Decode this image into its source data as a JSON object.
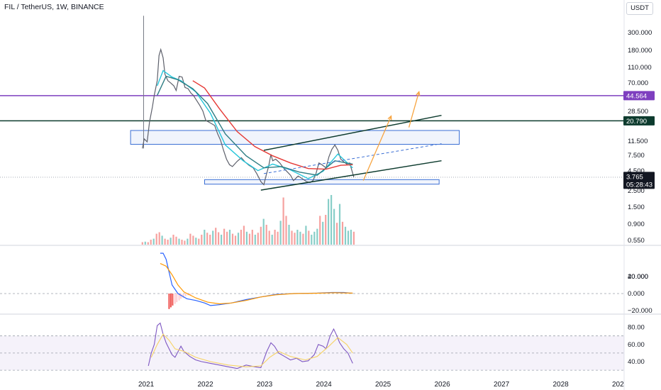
{
  "header": {
    "title": "FIL / TetherUS, 1W, BINANCE",
    "currency": "USDT"
  },
  "colors": {
    "ema_fast": "#26c6da",
    "ema_mid": "#2e7d83",
    "ema_slow": "#e53935",
    "purple": "#7e3fbf",
    "dark_green": "#0d3b2e",
    "box": "#3b6fd4",
    "projection": "#f7a440",
    "macd": "#2962ff",
    "signal": "#ff9800",
    "rsi": "#7e57c2",
    "rsi_ma": "#f6d365"
  },
  "chart_data": [
    {
      "type": "line",
      "title": "FIL / TetherUS, 1W, BINANCE",
      "scale": "log",
      "x_ticks": [
        "2021",
        "2022",
        "2023",
        "2024",
        "2025",
        "2026",
        "2027",
        "2028",
        "202"
      ],
      "y_ticks": [
        "300.000",
        "180.000",
        "110.000",
        "70.000",
        "28.500",
        "11.500",
        "7.500",
        "4.500",
        "2.500",
        "1.500",
        "0.900",
        "0.550"
      ],
      "price_labels": [
        {
          "text": "44.564",
          "kind": "purple"
        },
        {
          "text": "20.790",
          "kind": "dark"
        },
        {
          "text": "3.765",
          "kind": "last"
        },
        {
          "text": "05:28:43",
          "kind": "countdown"
        }
      ],
      "price_path": [
        [
          2020.95,
          9
        ],
        [
          2020.98,
          12
        ],
        [
          2021.03,
          11
        ],
        [
          2021.07,
          20
        ],
        [
          2021.12,
          32
        ],
        [
          2021.15,
          45
        ],
        [
          2021.2,
          70
        ],
        [
          2021.23,
          150
        ],
        [
          2021.26,
          180
        ],
        [
          2021.3,
          140
        ],
        [
          2021.33,
          85
        ],
        [
          2021.38,
          70
        ],
        [
          2021.43,
          65
        ],
        [
          2021.48,
          60
        ],
        [
          2021.52,
          52
        ],
        [
          2021.57,
          80
        ],
        [
          2021.62,
          78
        ],
        [
          2021.67,
          57
        ],
        [
          2021.72,
          55
        ],
        [
          2021.77,
          48
        ],
        [
          2021.81,
          45
        ],
        [
          2021.87,
          38
        ],
        [
          2021.92,
          33
        ],
        [
          2021.97,
          28
        ],
        [
          2022.02,
          21
        ],
        [
          2022.07,
          20
        ],
        [
          2022.12,
          19
        ],
        [
          2022.17,
          18
        ],
        [
          2022.22,
          14
        ],
        [
          2022.27,
          11.5
        ],
        [
          2022.32,
          8.5
        ],
        [
          2022.37,
          6.5
        ],
        [
          2022.42,
          5.5
        ],
        [
          2022.47,
          5.2
        ],
        [
          2022.55,
          6.1
        ],
        [
          2022.62,
          6.8
        ],
        [
          2022.68,
          6.0
        ],
        [
          2022.75,
          5.4
        ],
        [
          2022.82,
          5.0
        ],
        [
          2022.88,
          4.2
        ],
        [
          2022.95,
          3.3
        ],
        [
          2023.0,
          3.0
        ],
        [
          2023.04,
          4.0
        ],
        [
          2023.08,
          5.2
        ],
        [
          2023.12,
          7.5
        ],
        [
          2023.15,
          6.2
        ],
        [
          2023.2,
          6.5
        ],
        [
          2023.27,
          5.8
        ],
        [
          2023.33,
          5.0
        ],
        [
          2023.4,
          4.4
        ],
        [
          2023.45,
          4.0
        ],
        [
          2023.5,
          3.4
        ],
        [
          2023.58,
          3.9
        ],
        [
          2023.65,
          3.6
        ],
        [
          2023.72,
          3.3
        ],
        [
          2023.78,
          3.2
        ],
        [
          2023.83,
          3.4
        ],
        [
          2023.88,
          4.2
        ],
        [
          2023.93,
          5.8
        ],
        [
          2023.98,
          5.5
        ],
        [
          2024.05,
          5.0
        ],
        [
          2024.1,
          7.0
        ],
        [
          2024.15,
          8.8
        ],
        [
          2024.2,
          10.0
        ],
        [
          2024.25,
          8.5
        ],
        [
          2024.3,
          6.5
        ],
        [
          2024.35,
          6.0
        ],
        [
          2024.4,
          5.6
        ],
        [
          2024.45,
          5.8
        ],
        [
          2024.48,
          4.8
        ],
        [
          2024.52,
          3.765
        ]
      ],
      "series": [
        {
          "name": "",
          "color_key": "ema_fast",
          "values": [
            [
              2021.2,
              60
            ],
            [
              2021.3,
              95
            ],
            [
              2021.45,
              78
            ],
            [
              2021.6,
              70
            ],
            [
              2021.85,
              50
            ],
            [
              2022.1,
              26
            ],
            [
              2022.35,
              10
            ],
            [
              2022.65,
              6.2
            ],
            [
              2022.9,
              4.6
            ],
            [
              2023.15,
              5.6
            ],
            [
              2023.45,
              4.7
            ],
            [
              2023.75,
              3.6
            ],
            [
              2024.0,
              4.5
            ],
            [
              2024.25,
              7.6
            ],
            [
              2024.5,
              5.0
            ]
          ]
        },
        {
          "name": "",
          "color_key": "ema_mid",
          "values": [
            [
              2021.2,
              45
            ],
            [
              2021.35,
              80
            ],
            [
              2021.55,
              72
            ],
            [
              2021.8,
              55
            ],
            [
              2022.05,
              35
            ],
            [
              2022.35,
              14
            ],
            [
              2022.7,
              7.2
            ],
            [
              2023.0,
              5.0
            ],
            [
              2023.3,
              5.2
            ],
            [
              2023.6,
              4.4
            ],
            [
              2023.9,
              4.0
            ],
            [
              2024.2,
              6.2
            ],
            [
              2024.5,
              5.6
            ]
          ]
        },
        {
          "name": "",
          "color_key": "ema_slow",
          "values": [
            [
              2021.8,
              70
            ],
            [
              2022.0,
              56
            ],
            [
              2022.25,
              30
            ],
            [
              2022.55,
              15
            ],
            [
              2022.85,
              9.5
            ],
            [
              2023.15,
              7.2
            ],
            [
              2023.45,
              5.8
            ],
            [
              2023.75,
              4.9
            ],
            [
              2024.05,
              4.8
            ],
            [
              2024.3,
              5.4
            ],
            [
              2024.5,
              5.5
            ]
          ]
        }
      ],
      "volume": [
        0.05,
        0.06,
        0.05,
        0.1,
        0.12,
        0.22,
        0.25,
        0.18,
        0.12,
        0.1,
        0.14,
        0.2,
        0.16,
        0.12,
        0.1,
        0.08,
        0.12,
        0.22,
        0.18,
        0.14,
        0.12,
        0.2,
        0.3,
        0.24,
        0.2,
        0.28,
        0.34,
        0.25,
        0.2,
        0.32,
        0.26,
        0.3,
        0.22,
        0.18,
        0.24,
        0.3,
        0.38,
        0.26,
        0.22,
        0.3,
        0.2,
        0.24,
        0.36,
        0.52,
        0.4,
        0.28,
        0.2,
        0.3,
        0.26,
        0.48,
        0.95,
        0.58,
        0.4,
        0.28,
        0.24,
        0.3,
        0.26,
        0.22,
        0.38,
        0.28,
        0.2,
        0.26,
        0.32,
        0.58,
        0.46,
        0.6,
        0.92,
        1.0,
        0.72,
        0.44,
        0.82,
        0.46,
        0.36,
        0.28,
        0.3,
        0.26
      ]
    },
    {
      "type": "line",
      "title": "",
      "y_ticks": [
        "40.000",
        "20.000",
        "0.000",
        "−20.000"
      ],
      "ylim": [
        -24,
        48
      ],
      "series": [
        {
          "name": "",
          "color_key": "macd",
          "values": [
            [
              2021.25,
              47
            ],
            [
              2021.3,
              47
            ],
            [
              2021.35,
              40
            ],
            [
              2021.4,
              25
            ],
            [
              2021.45,
              10
            ],
            [
              2021.55,
              0
            ],
            [
              2021.7,
              -6
            ],
            [
              2021.85,
              -8
            ],
            [
              2022.0,
              -11
            ],
            [
              2022.1,
              -14
            ],
            [
              2022.25,
              -13
            ],
            [
              2022.45,
              -11
            ],
            [
              2022.7,
              -7
            ],
            [
              2022.95,
              -4
            ],
            [
              2023.2,
              -1
            ],
            [
              2023.5,
              0
            ],
            [
              2023.9,
              0.5
            ],
            [
              2024.15,
              1.2
            ],
            [
              2024.35,
              1.2
            ],
            [
              2024.5,
              0.3
            ]
          ]
        },
        {
          "name": "",
          "color_key": "signal",
          "values": [
            [
              2021.25,
              35
            ],
            [
              2021.35,
              32
            ],
            [
              2021.45,
              22
            ],
            [
              2021.55,
              10
            ],
            [
              2021.65,
              2
            ],
            [
              2021.85,
              -5
            ],
            [
              2022.05,
              -10
            ],
            [
              2022.25,
              -12
            ],
            [
              2022.45,
              -11
            ],
            [
              2022.7,
              -8
            ],
            [
              2022.95,
              -4
            ],
            [
              2023.2,
              -1.5
            ],
            [
              2023.5,
              0
            ],
            [
              2023.9,
              0.4
            ],
            [
              2024.2,
              1
            ],
            [
              2024.5,
              0.5
            ]
          ]
        }
      ],
      "histogram": [
        [
          2021.4,
          -18
        ],
        [
          2021.43,
          -16
        ],
        [
          2021.46,
          -14
        ],
        [
          2021.5,
          -12
        ],
        [
          2021.53,
          -10
        ],
        [
          2021.57,
          -8
        ],
        [
          2021.6,
          -6
        ],
        [
          2021.64,
          -5
        ],
        [
          2021.68,
          -3
        ],
        [
          2021.72,
          -2
        ],
        [
          2021.76,
          -1.5
        ]
      ]
    },
    {
      "type": "line",
      "title": "",
      "y_ticks": [
        "80.00",
        "60.00",
        "40.00"
      ],
      "ylim": [
        30,
        90
      ],
      "bands": [
        70,
        50,
        30
      ],
      "series": [
        {
          "name": "",
          "color_key": "rsi",
          "values": [
            [
              2021.05,
              35
            ],
            [
              2021.1,
              50
            ],
            [
              2021.15,
              60
            ],
            [
              2021.2,
              82
            ],
            [
              2021.25,
              85
            ],
            [
              2021.3,
              72
            ],
            [
              2021.35,
              62
            ],
            [
              2021.4,
              55
            ],
            [
              2021.45,
              48
            ],
            [
              2021.5,
              45
            ],
            [
              2021.6,
              58
            ],
            [
              2021.65,
              52
            ],
            [
              2021.75,
              46
            ],
            [
              2021.85,
              42
            ],
            [
              2021.95,
              40
            ],
            [
              2022.1,
              38
            ],
            [
              2022.25,
              36
            ],
            [
              2022.4,
              34
            ],
            [
              2022.55,
              32
            ],
            [
              2022.7,
              36
            ],
            [
              2022.85,
              34
            ],
            [
              2022.95,
              33
            ],
            [
              2023.05,
              52
            ],
            [
              2023.12,
              62
            ],
            [
              2023.18,
              58
            ],
            [
              2023.25,
              50
            ],
            [
              2023.35,
              46
            ],
            [
              2023.45,
              42
            ],
            [
              2023.55,
              44
            ],
            [
              2023.65,
              40
            ],
            [
              2023.75,
              41
            ],
            [
              2023.85,
              48
            ],
            [
              2023.92,
              60
            ],
            [
              2024.0,
              58
            ],
            [
              2024.05,
              55
            ],
            [
              2024.12,
              70
            ],
            [
              2024.18,
              78
            ],
            [
              2024.22,
              72
            ],
            [
              2024.28,
              62
            ],
            [
              2024.35,
              55
            ],
            [
              2024.42,
              50
            ],
            [
              2024.5,
              38
            ]
          ]
        },
        {
          "name": "",
          "color_key": "rsi_ma",
          "values": [
            [
              2021.1,
              45
            ],
            [
              2021.2,
              60
            ],
            [
              2021.3,
              72
            ],
            [
              2021.4,
              65
            ],
            [
              2021.5,
              55
            ],
            [
              2021.65,
              52
            ],
            [
              2021.85,
              45
            ],
            [
              2022.1,
              40
            ],
            [
              2022.4,
              36
            ],
            [
              2022.7,
              34
            ],
            [
              2022.95,
              35
            ],
            [
              2023.1,
              45
            ],
            [
              2023.25,
              52
            ],
            [
              2023.45,
              46
            ],
            [
              2023.7,
              42
            ],
            [
              2023.9,
              46
            ],
            [
              2024.1,
              58
            ],
            [
              2024.25,
              68
            ],
            [
              2024.4,
              60
            ],
            [
              2024.5,
              50
            ]
          ]
        }
      ]
    }
  ]
}
